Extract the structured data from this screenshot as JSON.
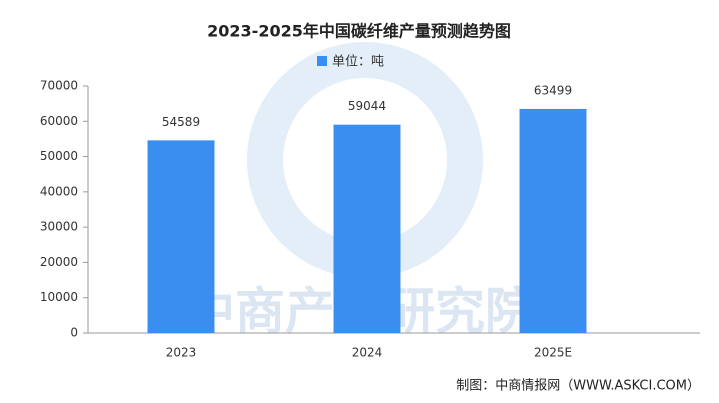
{
  "chart_data": {
    "type": "bar",
    "title": "2023-2025年中国碳纤维产量预测趋势图",
    "categories": [
      "2023",
      "2024",
      "2025E"
    ],
    "series": [
      {
        "name": "单位：吨",
        "color": "#3a8ef0",
        "values": [
          54589,
          59044,
          63499
        ]
      }
    ],
    "ylim": [
      0,
      70000
    ],
    "yticks": [
      0,
      10000,
      20000,
      30000,
      40000,
      50000,
      60000,
      70000
    ],
    "watermark": "中商产业研究院",
    "source": "制图：中商情报网（WWW.ASKCI.COM）"
  }
}
